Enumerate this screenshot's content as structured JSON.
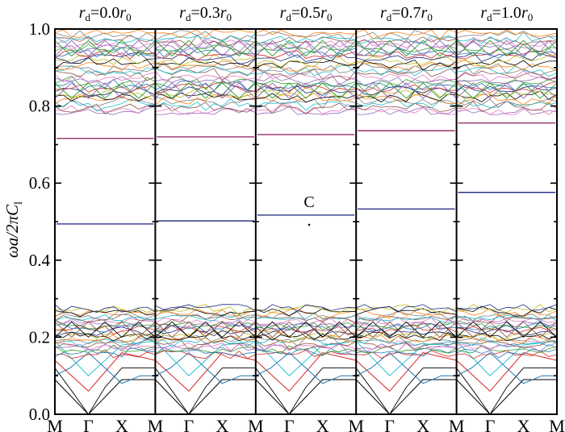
{
  "chart_data": {
    "type": "line",
    "ylabel": "ωa/2πC_l",
    "ylabel_parts": {
      "base": "ωa/2πC",
      "sub": "l"
    },
    "ylim": [
      0.0,
      1.0
    ],
    "yticks": [
      "0.0",
      "0.2",
      "0.4",
      "0.6",
      "0.8",
      "1.0"
    ],
    "xtick_labels": [
      "M",
      "Γ",
      "X",
      "M",
      "Γ",
      "X",
      "M",
      "Γ",
      "X",
      "M",
      "Γ",
      "X",
      "M",
      "Γ",
      "X",
      "M"
    ],
    "grid": false,
    "annotation": {
      "text": "C",
      "panel": 2,
      "frequency": 0.517
    },
    "panels": [
      {
        "label_var": "r",
        "label_sub": "d",
        "label_mid": "=0.0",
        "label_unit": "r",
        "label_unit_sub": "0",
        "defect_modes": [
          0.494,
          0.716
        ]
      },
      {
        "label_var": "r",
        "label_sub": "d",
        "label_mid": "=0.3",
        "label_unit": "r",
        "label_unit_sub": "0",
        "defect_modes": [
          0.502,
          0.72
        ]
      },
      {
        "label_var": "r",
        "label_sub": "d",
        "label_mid": "=0.5",
        "label_unit": "r",
        "label_unit_sub": "0",
        "defect_modes": [
          0.517,
          0.726
        ]
      },
      {
        "label_var": "r",
        "label_sub": "d",
        "label_mid": "=0.7",
        "label_unit": "r",
        "label_unit_sub": "0",
        "defect_modes": [
          0.533,
          0.736
        ]
      },
      {
        "label_var": "r",
        "label_sub": "d",
        "label_mid": "=1.0",
        "label_unit": "r",
        "label_unit_sub": "0",
        "defect_modes": [
          0.576,
          0.756
        ]
      }
    ],
    "lower_band": {
      "range": [
        0.0,
        0.285
      ]
    },
    "upper_band": {
      "range": [
        0.78,
        1.0
      ]
    }
  }
}
